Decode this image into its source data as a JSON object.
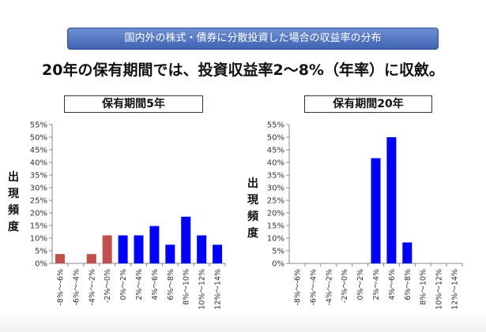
{
  "banner": "国内外の株式・債券に分散投資した場合の収益率の分布",
  "subtitle": "20年の保有期間では、投資収益率2～8%（年率）に収斂。",
  "colors": {
    "negative": "#c0504d",
    "positive": "#0000ff",
    "banner": "#4a6fbf"
  },
  "chart_data": [
    {
      "type": "bar",
      "title": "保有期間5年",
      "ylabel": "出現頻度",
      "yticks": [
        "0%",
        "5%",
        "10%",
        "15%",
        "20%",
        "25%",
        "30%",
        "35%",
        "40%",
        "45%",
        "50%",
        "55%"
      ],
      "ylim": [
        0,
        55
      ],
      "categories": [
        "-8%～-6%",
        "-6%～-4%",
        "-4%～-2%",
        "-2%～0%",
        "0%～2%",
        "2%～4%",
        "4%～6%",
        "6%～8%",
        "8%～10%",
        "10%～12%",
        "12%～14%"
      ],
      "values": [
        3.7,
        0,
        3.7,
        11.1,
        11.1,
        11.1,
        14.8,
        7.4,
        18.5,
        11.1,
        7.4
      ],
      "bar_colors": [
        "negative",
        "negative",
        "negative",
        "negative",
        "positive",
        "positive",
        "positive",
        "positive",
        "positive",
        "positive",
        "positive"
      ],
      "grid": false
    },
    {
      "type": "bar",
      "title": "保有期間20年",
      "ylabel": "出現頻度",
      "yticks": [
        "0%",
        "5%",
        "10%",
        "15%",
        "20%",
        "25%",
        "30%",
        "35%",
        "40%",
        "45%",
        "50%",
        "55%"
      ],
      "ylim": [
        0,
        55
      ],
      "categories": [
        "-8%～-6%",
        "-6%～-4%",
        "-4%～-2%",
        "-2%～0%",
        "0%～2%",
        "2%～4%",
        "4%～6%",
        "6%～8%",
        "8%～10%",
        "10%～12%",
        "12%～14%"
      ],
      "values": [
        0,
        0,
        0,
        0,
        0,
        41.7,
        50,
        8.3,
        0,
        0,
        0
      ],
      "bar_colors": [
        "positive",
        "positive",
        "positive",
        "positive",
        "positive",
        "positive",
        "positive",
        "positive",
        "positive",
        "positive",
        "positive"
      ],
      "grid": false
    }
  ]
}
